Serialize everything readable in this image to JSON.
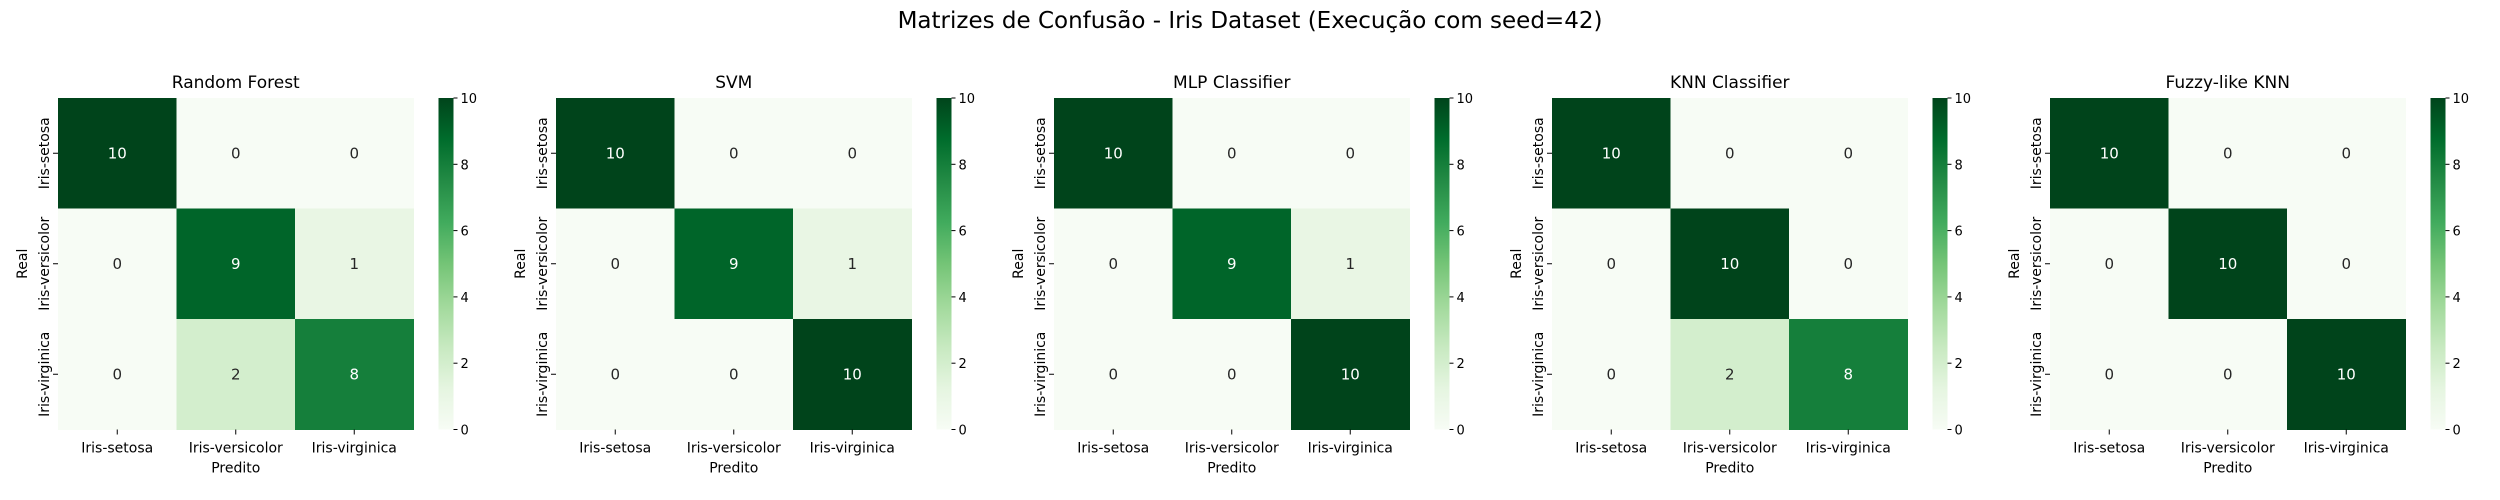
{
  "figure": {
    "title": "Matrizes de Confusão - Iris Dataset (Execução com seed=42)"
  },
  "chart_data": [
    {
      "type": "heatmap",
      "title": "Random Forest",
      "xlabel": "Predito",
      "ylabel": "Real",
      "x_categories": [
        "Iris-setosa",
        "Iris-versicolor",
        "Iris-virginica"
      ],
      "y_categories": [
        "Iris-setosa",
        "Iris-versicolor",
        "Iris-virginica"
      ],
      "values": [
        [
          10,
          0,
          0
        ],
        [
          0,
          9,
          1
        ],
        [
          0,
          2,
          8
        ]
      ],
      "colorbar": {
        "range": [
          0,
          10
        ],
        "ticks": [
          "0",
          "2",
          "4",
          "6",
          "8",
          "10"
        ],
        "colormap": "Greens"
      }
    },
    {
      "type": "heatmap",
      "title": "SVM",
      "xlabel": "Predito",
      "ylabel": "Real",
      "x_categories": [
        "Iris-setosa",
        "Iris-versicolor",
        "Iris-virginica"
      ],
      "y_categories": [
        "Iris-setosa",
        "Iris-versicolor",
        "Iris-virginica"
      ],
      "values": [
        [
          10,
          0,
          0
        ],
        [
          0,
          9,
          1
        ],
        [
          0,
          0,
          10
        ]
      ],
      "colorbar": {
        "range": [
          0,
          10
        ],
        "ticks": [
          "0",
          "2",
          "4",
          "6",
          "8",
          "10"
        ],
        "colormap": "Greens"
      }
    },
    {
      "type": "heatmap",
      "title": "MLP Classifier",
      "xlabel": "Predito",
      "ylabel": "Real",
      "x_categories": [
        "Iris-setosa",
        "Iris-versicolor",
        "Iris-virginica"
      ],
      "y_categories": [
        "Iris-setosa",
        "Iris-versicolor",
        "Iris-virginica"
      ],
      "values": [
        [
          10,
          0,
          0
        ],
        [
          0,
          9,
          1
        ],
        [
          0,
          0,
          10
        ]
      ],
      "colorbar": {
        "range": [
          0,
          10
        ],
        "ticks": [
          "0",
          "2",
          "4",
          "6",
          "8",
          "10"
        ],
        "colormap": "Greens"
      }
    },
    {
      "type": "heatmap",
      "title": "KNN Classifier",
      "xlabel": "Predito",
      "ylabel": "Real",
      "x_categories": [
        "Iris-setosa",
        "Iris-versicolor",
        "Iris-virginica"
      ],
      "y_categories": [
        "Iris-setosa",
        "Iris-versicolor",
        "Iris-virginica"
      ],
      "values": [
        [
          10,
          0,
          0
        ],
        [
          0,
          10,
          0
        ],
        [
          0,
          2,
          8
        ]
      ],
      "colorbar": {
        "range": [
          0,
          10
        ],
        "ticks": [
          "0",
          "2",
          "4",
          "6",
          "8",
          "10"
        ],
        "colormap": "Greens"
      }
    },
    {
      "type": "heatmap",
      "title": "Fuzzy-like KNN",
      "xlabel": "Predito",
      "ylabel": "Real",
      "x_categories": [
        "Iris-setosa",
        "Iris-versicolor",
        "Iris-virginica"
      ],
      "y_categories": [
        "Iris-setosa",
        "Iris-versicolor",
        "Iris-virginica"
      ],
      "values": [
        [
          10,
          0,
          0
        ],
        [
          0,
          10,
          0
        ],
        [
          0,
          0,
          10
        ]
      ],
      "colorbar": {
        "range": [
          0,
          10
        ],
        "ticks": [
          "0",
          "2",
          "4",
          "6",
          "8",
          "10"
        ],
        "colormap": "Greens"
      }
    }
  ]
}
